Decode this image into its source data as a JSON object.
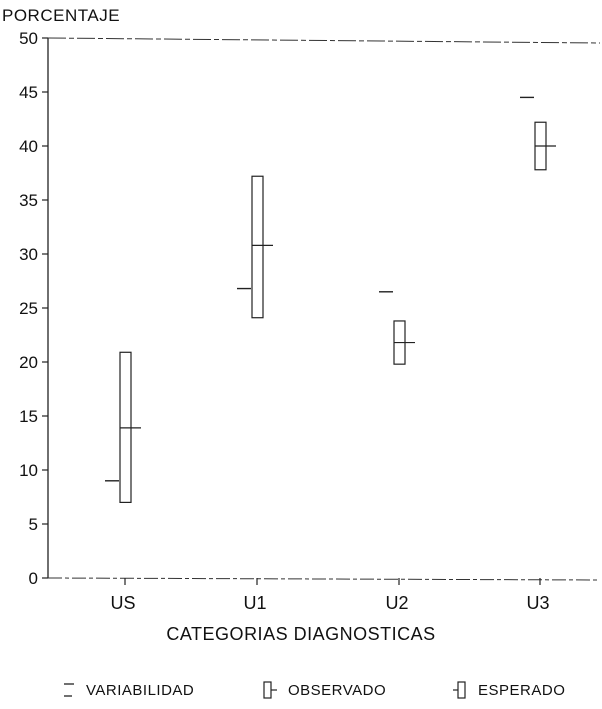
{
  "chart_data": {
    "type": "box",
    "ylabel": "PORCENTAJE",
    "xlabel": "CATEGORIAS DIAGNOSTICAS",
    "ylim": [
      0,
      50
    ],
    "yticks": [
      0,
      5,
      10,
      15,
      20,
      25,
      30,
      35,
      40,
      45,
      50
    ],
    "categories": [
      "US",
      "U1",
      "U2",
      "U3"
    ],
    "series": [
      {
        "name": "VARIABILIDAD",
        "values": [
          9,
          26.8,
          26.5,
          44.5
        ]
      },
      {
        "name": "OBSERVADO",
        "values": [
          {
            "low": 7,
            "high": 20.9,
            "mid": 13.9
          },
          {
            "low": 24.1,
            "high": 37.2,
            "mid": 30.8
          },
          {
            "low": 19.8,
            "high": 23.8,
            "mid": 21.8
          },
          {
            "low": 37.8,
            "high": 42.2,
            "mid": 40
          }
        ]
      }
    ],
    "legend": [
      "VARIABILIDAD",
      "OBSERVADO",
      "ESPERADO"
    ],
    "grid": false
  }
}
